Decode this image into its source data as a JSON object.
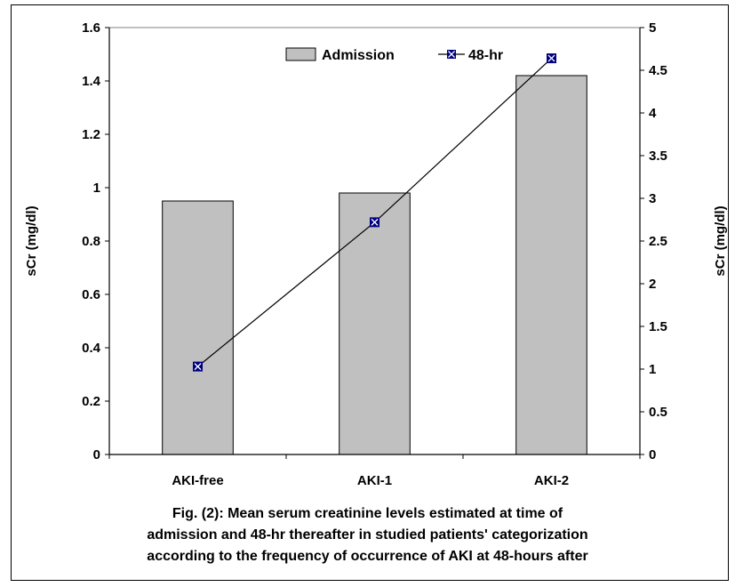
{
  "chart_data": {
    "type": "bar",
    "categories": [
      "AKI-free",
      "AKI-1",
      "AKI-2"
    ],
    "series": [
      {
        "name": "Admission",
        "type": "bar",
        "axis": "left",
        "values": [
          0.95,
          0.98,
          1.42
        ],
        "color": "#c0c0c0"
      },
      {
        "name": "48-hr",
        "type": "line",
        "axis": "right",
        "values": [
          1.03,
          2.72,
          4.64
        ],
        "color": "#000080"
      }
    ],
    "ylabel": "sCr (mg/dl)",
    "ylabel_right": "sCr (mg/dl)",
    "ylim": [
      0,
      1.6
    ],
    "ylim_right": [
      0,
      5
    ],
    "yticks": [
      "0",
      "0.2",
      "0.4",
      "0.6",
      "0.8",
      "1",
      "1.2",
      "1.4",
      "1.6"
    ],
    "yticks_right": [
      "0",
      "0.5",
      "1",
      "1.5",
      "2",
      "2.5",
      "3",
      "3.5",
      "4",
      "4.5",
      "5"
    ],
    "grid": false,
    "legend_position": "top"
  },
  "caption": {
    "line1": "Fig. (2): Mean serum creatinine levels estimated at time of",
    "line2": "admission and 48-hr thereafter in studied patients' categorization",
    "line3": "according to the frequency of occurrence of AKI at 48-hours after"
  }
}
